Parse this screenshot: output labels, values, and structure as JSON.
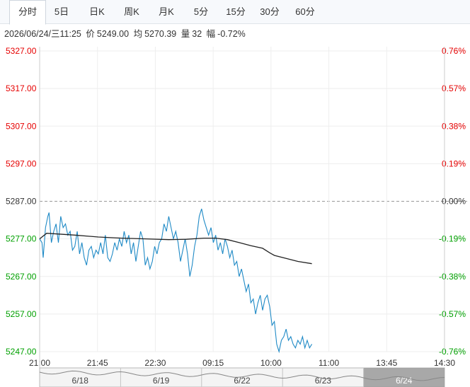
{
  "tabs": [
    {
      "label": "分时",
      "active": true
    },
    {
      "label": "5日"
    },
    {
      "label": "日K"
    },
    {
      "label": "周K"
    },
    {
      "label": "月K"
    },
    {
      "label": "5分"
    },
    {
      "label": "15分"
    },
    {
      "label": "30分"
    },
    {
      "label": "60分"
    }
  ],
  "info": {
    "datetime": "2026/06/24/三11:25",
    "price_label": "价",
    "price": "5249.00",
    "avg_label": "均",
    "avg": "5270.39",
    "vol_label": "量",
    "vol": "32",
    "chg_label": "幅",
    "chg": "-0.72%"
  },
  "colors": {
    "up": "#e60000",
    "down": "#00a000",
    "price_line": "#1f8ac6",
    "avg_line": "#222222",
    "grid": "#eeeeee",
    "baseline": "#999999"
  },
  "chart_data": {
    "type": "line",
    "baseline": 5287.0,
    "ylim": [
      5247.0,
      5327.0
    ],
    "y_ticks": [
      "5327.00",
      "5317.00",
      "5307.00",
      "5297.00",
      "5287.00",
      "5277.00",
      "5267.00",
      "5257.00",
      "5247.00"
    ],
    "pct_ticks": [
      "0.76%",
      "0.57%",
      "0.38%",
      "0.19%",
      "0.00%",
      "-0.19%",
      "-0.38%",
      "-0.57%",
      "-0.76%"
    ],
    "x_ticks": [
      "21:00",
      "21:45",
      "22:30",
      "09:15",
      "10:00",
      "11:00",
      "13:45",
      "14:30"
    ],
    "session_total": 32,
    "minute_total": 345,
    "price": [
      [
        0,
        5277
      ],
      [
        2,
        5276
      ],
      [
        3,
        5272
      ],
      [
        5,
        5280
      ],
      [
        7,
        5283
      ],
      [
        8,
        5284
      ],
      [
        10,
        5276
      ],
      [
        12,
        5279
      ],
      [
        14,
        5281
      ],
      [
        16,
        5276
      ],
      [
        18,
        5283
      ],
      [
        20,
        5280
      ],
      [
        22,
        5281
      ],
      [
        24,
        5278
      ],
      [
        26,
        5279
      ],
      [
        28,
        5274
      ],
      [
        30,
        5275
      ],
      [
        32,
        5279
      ],
      [
        34,
        5273
      ],
      [
        36,
        5276
      ],
      [
        38,
        5272
      ],
      [
        40,
        5270
      ],
      [
        42,
        5274
      ],
      [
        44,
        5275
      ],
      [
        46,
        5272
      ],
      [
        48,
        5274
      ],
      [
        50,
        5273
      ],
      [
        52,
        5276
      ],
      [
        54,
        5273
      ],
      [
        56,
        5278
      ],
      [
        58,
        5272
      ],
      [
        60,
        5271
      ],
      [
        62,
        5273
      ],
      [
        64,
        5276
      ],
      [
        66,
        5274
      ],
      [
        68,
        5277
      ],
      [
        70,
        5275
      ],
      [
        72,
        5279
      ],
      [
        74,
        5276
      ],
      [
        76,
        5278
      ],
      [
        78,
        5273
      ],
      [
        80,
        5276
      ],
      [
        82,
        5271
      ],
      [
        84,
        5275
      ],
      [
        86,
        5279
      ],
      [
        88,
        5277
      ],
      [
        90,
        5270
      ],
      [
        92,
        5272
      ],
      [
        94,
        5269
      ],
      [
        96,
        5271
      ],
      [
        98,
        5275
      ],
      [
        100,
        5273
      ],
      [
        102,
        5276
      ],
      [
        104,
        5277
      ],
      [
        106,
        5281
      ],
      [
        108,
        5279
      ],
      [
        110,
        5283
      ],
      [
        112,
        5280
      ],
      [
        114,
        5277
      ],
      [
        116,
        5279
      ],
      [
        118,
        5276
      ],
      [
        120,
        5271
      ],
      [
        122,
        5274
      ],
      [
        124,
        5277
      ],
      [
        126,
        5273
      ],
      [
        128,
        5267
      ],
      [
        130,
        5270
      ],
      [
        132,
        5275
      ],
      [
        134,
        5278
      ],
      [
        136,
        5283
      ],
      [
        138,
        5285
      ],
      [
        140,
        5282
      ],
      [
        142,
        5280
      ],
      [
        144,
        5278
      ],
      [
        146,
        5280
      ],
      [
        148,
        5276
      ],
      [
        150,
        5278
      ],
      [
        152,
        5274
      ],
      [
        154,
        5276
      ],
      [
        156,
        5273
      ],
      [
        158,
        5277
      ],
      [
        160,
        5275
      ],
      [
        162,
        5272
      ],
      [
        164,
        5274
      ],
      [
        166,
        5270
      ],
      [
        168,
        5271
      ],
      [
        170,
        5267
      ],
      [
        172,
        5269
      ],
      [
        174,
        5266
      ],
      [
        176,
        5263
      ],
      [
        178,
        5265
      ],
      [
        180,
        5260
      ],
      [
        182,
        5261
      ],
      [
        184,
        5257
      ],
      [
        186,
        5260
      ],
      [
        188,
        5262
      ],
      [
        190,
        5258
      ],
      [
        192,
        5261
      ],
      [
        194,
        5262
      ],
      [
        196,
        5259
      ],
      [
        198,
        5254
      ],
      [
        200,
        5255
      ],
      [
        202,
        5249
      ],
      [
        204,
        5247
      ],
      [
        206,
        5250
      ],
      [
        208,
        5251
      ],
      [
        210,
        5253
      ],
      [
        212,
        5250
      ],
      [
        214,
        5251
      ],
      [
        216,
        5249
      ],
      [
        218,
        5248
      ],
      [
        220,
        5250
      ],
      [
        222,
        5249
      ],
      [
        224,
        5251
      ],
      [
        226,
        5248
      ],
      [
        228,
        5250
      ],
      [
        230,
        5248
      ],
      [
        232,
        5249
      ]
    ],
    "avg": [
      [
        0,
        5277
      ],
      [
        6,
        5278.5
      ],
      [
        15,
        5278.3
      ],
      [
        30,
        5278
      ],
      [
        50,
        5277.5
      ],
      [
        70,
        5277.2
      ],
      [
        90,
        5277
      ],
      [
        110,
        5276.8
      ],
      [
        125,
        5276.9
      ],
      [
        140,
        5277.2
      ],
      [
        150,
        5277.2
      ],
      [
        160,
        5276.8
      ],
      [
        170,
        5276
      ],
      [
        180,
        5275.2
      ],
      [
        190,
        5274.5
      ],
      [
        196,
        5273.3
      ],
      [
        200,
        5272.6
      ],
      [
        210,
        5271.8
      ],
      [
        220,
        5271
      ],
      [
        232,
        5270.39
      ]
    ],
    "nav_dates": [
      "6/18",
      "6/19",
      "6/22",
      "6/23",
      "6/24"
    ]
  }
}
